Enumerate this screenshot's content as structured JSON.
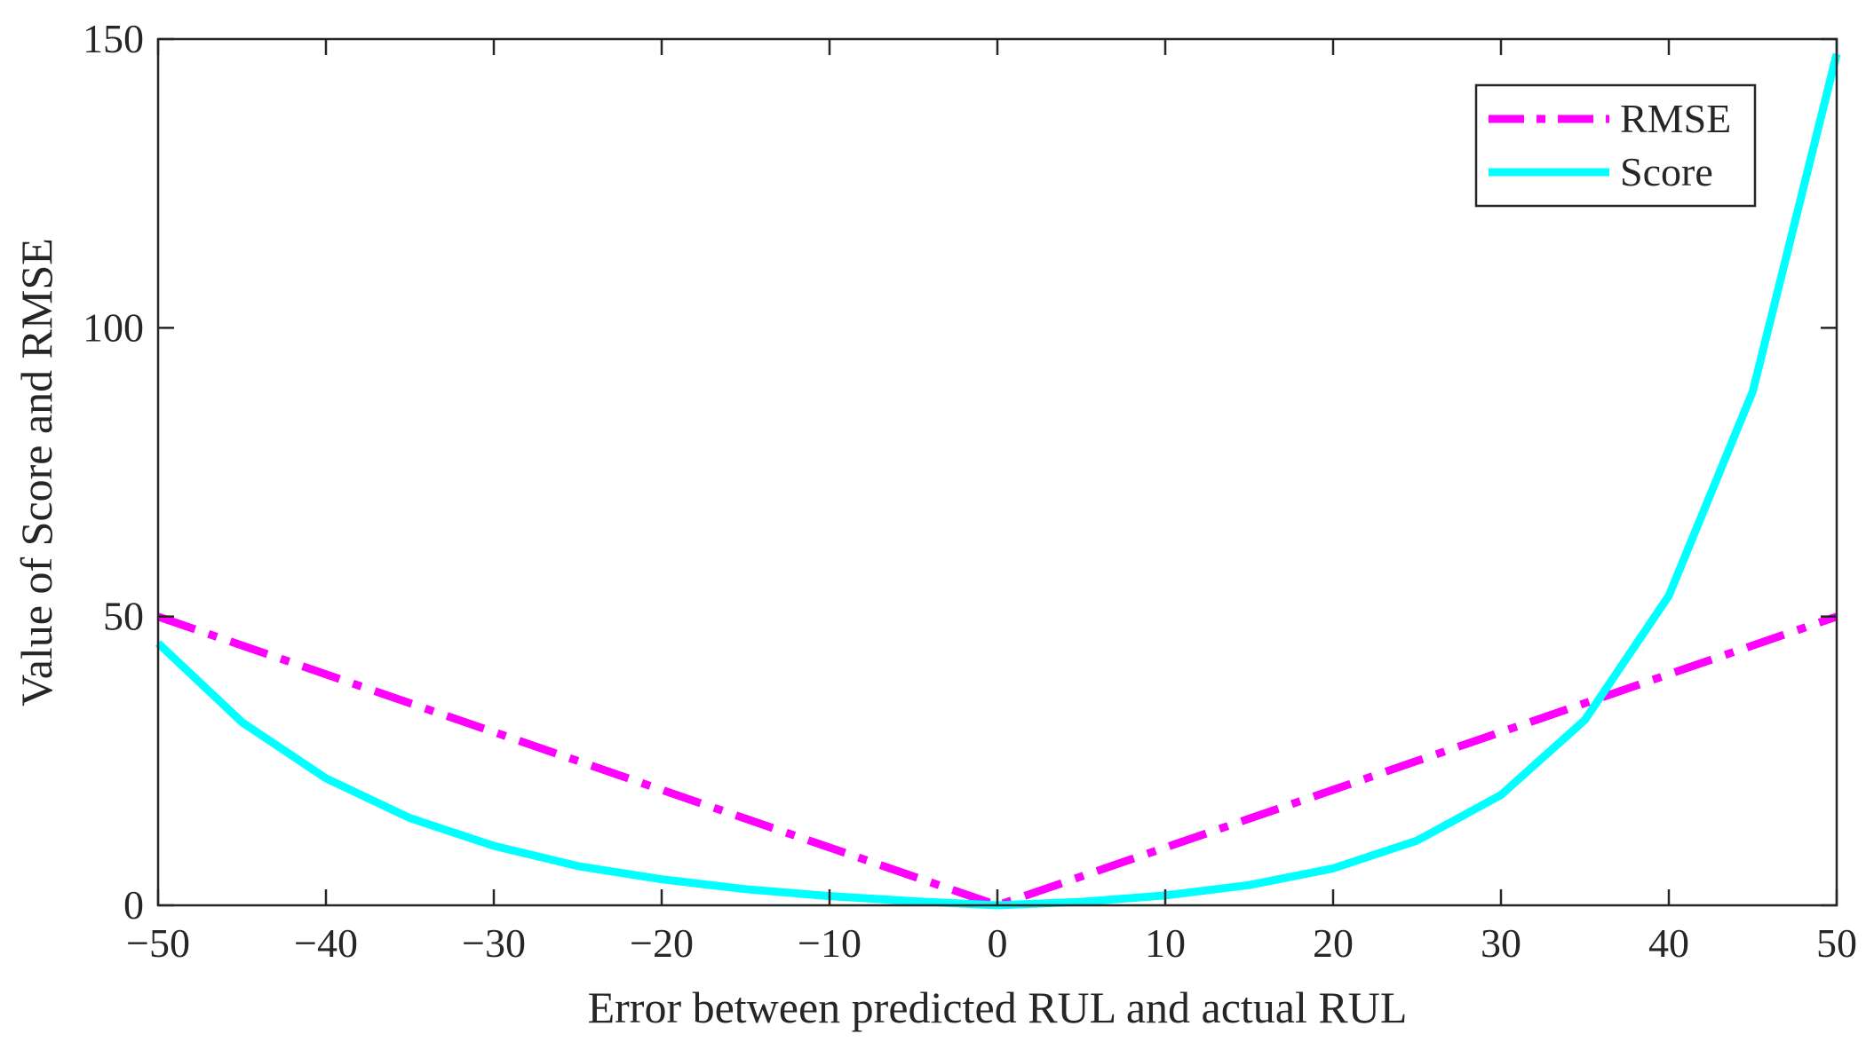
{
  "chart_data": {
    "type": "line",
    "title": "",
    "xlabel": "Error between predicted RUL and actual RUL",
    "ylabel": "Value of Score and RMSE",
    "xlim": [
      -50,
      50
    ],
    "ylim": [
      0,
      150
    ],
    "x_ticks": [
      -50,
      -40,
      -30,
      -20,
      -10,
      0,
      10,
      20,
      30,
      40,
      50
    ],
    "x_tick_labels": [
      "−50",
      "−40",
      "−30",
      "−20",
      "−10",
      "0",
      "10",
      "20",
      "30",
      "40",
      "50"
    ],
    "y_ticks": [
      0,
      50,
      100,
      150
    ],
    "y_tick_labels": [
      "0",
      "50",
      "100",
      "150"
    ],
    "grid": false,
    "legend_position": "top-right",
    "x": [
      -50,
      -45,
      -40,
      -35,
      -30,
      -25,
      -20,
      -15,
      -10,
      -5,
      0,
      5,
      10,
      15,
      20,
      25,
      30,
      35,
      40,
      45,
      50
    ],
    "series": [
      {
        "name": "RMSE",
        "color": "#ff00ff",
        "style": "dash-dot",
        "values": [
          50,
          45,
          40,
          35,
          30,
          25,
          20,
          15,
          10,
          5,
          0,
          5,
          10,
          15,
          20,
          25,
          30,
          35,
          40,
          45,
          50
        ]
      },
      {
        "name": "Score",
        "color": "#00ffff",
        "style": "solid",
        "values": [
          45.4,
          31.7,
          22.0,
          15.1,
          10.3,
          6.8,
          4.5,
          2.8,
          1.6,
          0.7,
          0,
          0.6,
          1.7,
          3.5,
          6.4,
          11.2,
          19.1,
          32.1,
          53.6,
          89.0,
          147.4
        ]
      }
    ]
  }
}
